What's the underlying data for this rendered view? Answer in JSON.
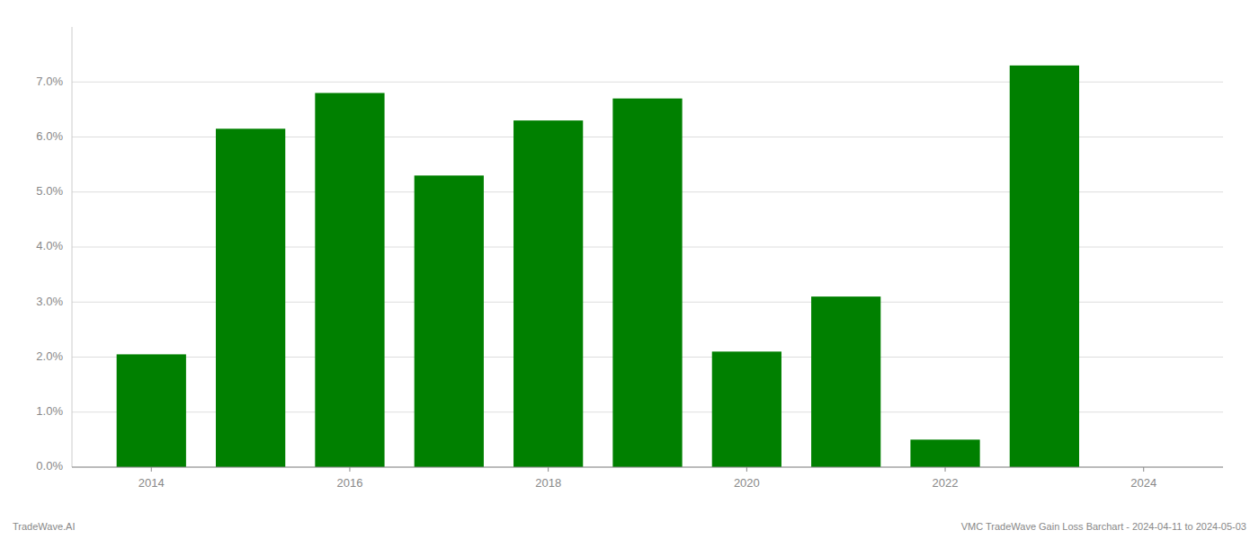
{
  "chart_data": {
    "type": "bar",
    "x": [
      2014,
      2015,
      2016,
      2017,
      2018,
      2019,
      2020,
      2021,
      2022,
      2023
    ],
    "values": [
      0.0205,
      0.0615,
      0.068,
      0.053,
      0.063,
      0.067,
      0.021,
      0.031,
      0.005,
      0.073
    ],
    "color": "#008000",
    "xlim": [
      2013.2,
      2024.8
    ],
    "xticks": [
      2014,
      2016,
      2018,
      2020,
      2022,
      2024
    ],
    "ylim": [
      0,
      0.08
    ],
    "yticks": [
      {
        "value": 0.0,
        "label": "0.0%"
      },
      {
        "value": 0.01,
        "label": "1.0%"
      },
      {
        "value": 0.02,
        "label": "2.0%"
      },
      {
        "value": 0.03,
        "label": "3.0%"
      },
      {
        "value": 0.04,
        "label": "4.0%"
      },
      {
        "value": 0.05,
        "label": "5.0%"
      },
      {
        "value": 0.06,
        "label": "6.0%"
      },
      {
        "value": 0.07,
        "label": "7.0%"
      }
    ],
    "grid": true,
    "annotations": [
      "TradeWave.AI",
      "VMC TradeWave Gain Loss Barchart - 2024-04-11 to 2024-05-03"
    ]
  }
}
